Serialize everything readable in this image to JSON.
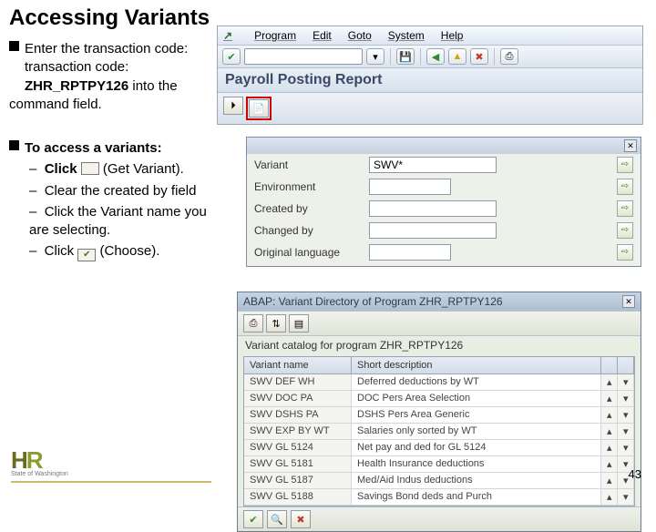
{
  "slide": {
    "title": "Accessing Variants",
    "page_number": "43",
    "logo_line1": "H",
    "logo_line2": "R",
    "logo_sub": "State of Washington"
  },
  "instructions": {
    "p1a": "Enter the transaction code: ",
    "p1b": "ZHR_RPTPY126",
    "p1c": " into the command field.",
    "l2lead": "To access a variants:",
    "s1a": "Click ",
    "s1b": " (Get Variant).",
    "s2": "Clear the created by field",
    "s3": "Click the Variant name you are selecting.",
    "s4a": "Click ",
    "s4b": " (Choose)."
  },
  "sap_menu": {
    "items": [
      "Program",
      "Edit",
      "Goto",
      "System",
      "Help"
    ],
    "report_title": "Payroll Posting Report"
  },
  "variant_form": {
    "rows": [
      {
        "label": "Variant",
        "value": "SWV*"
      },
      {
        "label": "Environment",
        "value": ""
      },
      {
        "label": "Created by",
        "value": ""
      },
      {
        "label": "Changed by",
        "value": ""
      },
      {
        "label": "Original language",
        "value": ""
      }
    ]
  },
  "catalog": {
    "title": "ABAP: Variant Directory of Program ZHR_RPTPY126",
    "subtitle": "Variant catalog for program ZHR_RPTPY126",
    "cols": [
      "Variant name",
      "Short description"
    ],
    "rows": [
      [
        "SWV DEF WH",
        "Deferred deductions by WT"
      ],
      [
        "SWV DOC PA",
        "DOC Pers Area Selection"
      ],
      [
        "SWV DSHS PA",
        "DSHS Pers Area Generic"
      ],
      [
        "SWV EXP BY WT",
        "Salaries only sorted by WT"
      ],
      [
        "SWV GL 5124",
        "Net pay and ded for GL 5124"
      ],
      [
        "SWV GL 5181",
        "Health Insurance deductions"
      ],
      [
        "SWV GL 5187",
        "Med/Aid Indus deductions"
      ],
      [
        "SWV GL 5188",
        "Savings Bond deds and Purch"
      ]
    ]
  }
}
